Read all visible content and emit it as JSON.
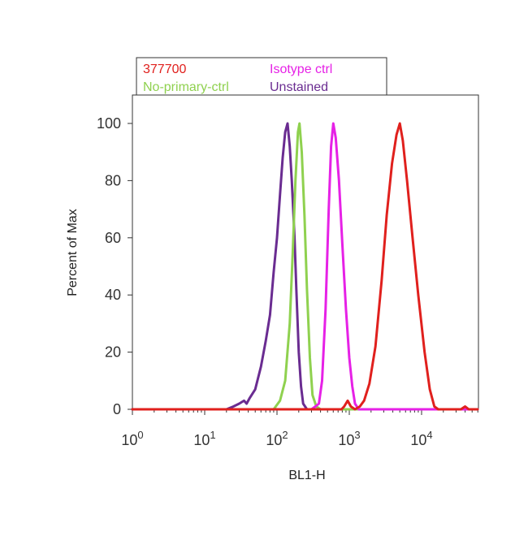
{
  "chart_data": {
    "type": "line",
    "title": "",
    "xlabel": "BL1-H",
    "ylabel": "Percent of Max",
    "xscale": "log",
    "xlim": [
      1,
      60000
    ],
    "ylim": [
      0,
      110
    ],
    "x_ticks": [
      {
        "value": 1,
        "base": "10",
        "exp": "0"
      },
      {
        "value": 10,
        "base": "10",
        "exp": "1"
      },
      {
        "value": 100,
        "base": "10",
        "exp": "2"
      },
      {
        "value": 1000,
        "base": "10",
        "exp": "3"
      },
      {
        "value": 10000,
        "base": "10",
        "exp": "4"
      }
    ],
    "y_ticks": [
      "0",
      "20",
      "40",
      "60",
      "80",
      "100"
    ],
    "grid": false,
    "legend_position": "top-left, above plot",
    "series": [
      {
        "name": "Unstained",
        "color": "#6a2c91",
        "points": [
          [
            1,
            0
          ],
          [
            20,
            0
          ],
          [
            25,
            1
          ],
          [
            30,
            2
          ],
          [
            35,
            3
          ],
          [
            38,
            2
          ],
          [
            42,
            4
          ],
          [
            50,
            7
          ],
          [
            60,
            15
          ],
          [
            70,
            24
          ],
          [
            80,
            33
          ],
          [
            90,
            48
          ],
          [
            100,
            60
          ],
          [
            110,
            75
          ],
          [
            120,
            88
          ],
          [
            130,
            97
          ],
          [
            140,
            100
          ],
          [
            150,
            92
          ],
          [
            160,
            80
          ],
          [
            175,
            60
          ],
          [
            185,
            42
          ],
          [
            200,
            20
          ],
          [
            215,
            8
          ],
          [
            230,
            2
          ],
          [
            260,
            0
          ],
          [
            60000,
            0
          ]
        ]
      },
      {
        "name": "No-primary-ctrl",
        "color": "#8fd14f",
        "points": [
          [
            1,
            0
          ],
          [
            90,
            0
          ],
          [
            110,
            3
          ],
          [
            130,
            10
          ],
          [
            150,
            30
          ],
          [
            165,
            55
          ],
          [
            180,
            80
          ],
          [
            195,
            97
          ],
          [
            205,
            100
          ],
          [
            220,
            90
          ],
          [
            240,
            68
          ],
          [
            260,
            42
          ],
          [
            285,
            18
          ],
          [
            310,
            5
          ],
          [
            350,
            1
          ],
          [
            400,
            0
          ],
          [
            60000,
            0
          ]
        ]
      },
      {
        "name": "Isotype ctrl",
        "color": "#e621e6",
        "points": [
          [
            1,
            0
          ],
          [
            300,
            0
          ],
          [
            340,
            1
          ],
          [
            380,
            2
          ],
          [
            420,
            10
          ],
          [
            470,
            35
          ],
          [
            520,
            70
          ],
          [
            560,
            92
          ],
          [
            600,
            100
          ],
          [
            650,
            95
          ],
          [
            720,
            80
          ],
          [
            800,
            58
          ],
          [
            900,
            35
          ],
          [
            1000,
            18
          ],
          [
            1100,
            8
          ],
          [
            1200,
            2
          ],
          [
            1350,
            0
          ],
          [
            60000,
            0
          ]
        ]
      },
      {
        "name": "377700",
        "color": "#e0201d",
        "points": [
          [
            1,
            0
          ],
          [
            780,
            0
          ],
          [
            850,
            1
          ],
          [
            950,
            3
          ],
          [
            1050,
            1
          ],
          [
            1200,
            0
          ],
          [
            1400,
            1
          ],
          [
            1600,
            3
          ],
          [
            1900,
            9
          ],
          [
            2300,
            22
          ],
          [
            2800,
            45
          ],
          [
            3300,
            68
          ],
          [
            3900,
            86
          ],
          [
            4500,
            96
          ],
          [
            5000,
            100
          ],
          [
            5500,
            94
          ],
          [
            6300,
            80
          ],
          [
            7500,
            60
          ],
          [
            9000,
            40
          ],
          [
            11000,
            20
          ],
          [
            13000,
            7
          ],
          [
            15000,
            1
          ],
          [
            17000,
            0
          ],
          [
            35000,
            0
          ],
          [
            40000,
            1
          ],
          [
            45000,
            0
          ],
          [
            60000,
            0
          ]
        ]
      }
    ]
  },
  "legend": {
    "items": [
      {
        "label": "377700",
        "color": "#e0201d"
      },
      {
        "label": "Isotype ctrl",
        "color": "#e621e6"
      },
      {
        "label": "No-primary-ctrl",
        "color": "#8fd14f"
      },
      {
        "label": "Unstained",
        "color": "#6a2c91"
      }
    ]
  }
}
